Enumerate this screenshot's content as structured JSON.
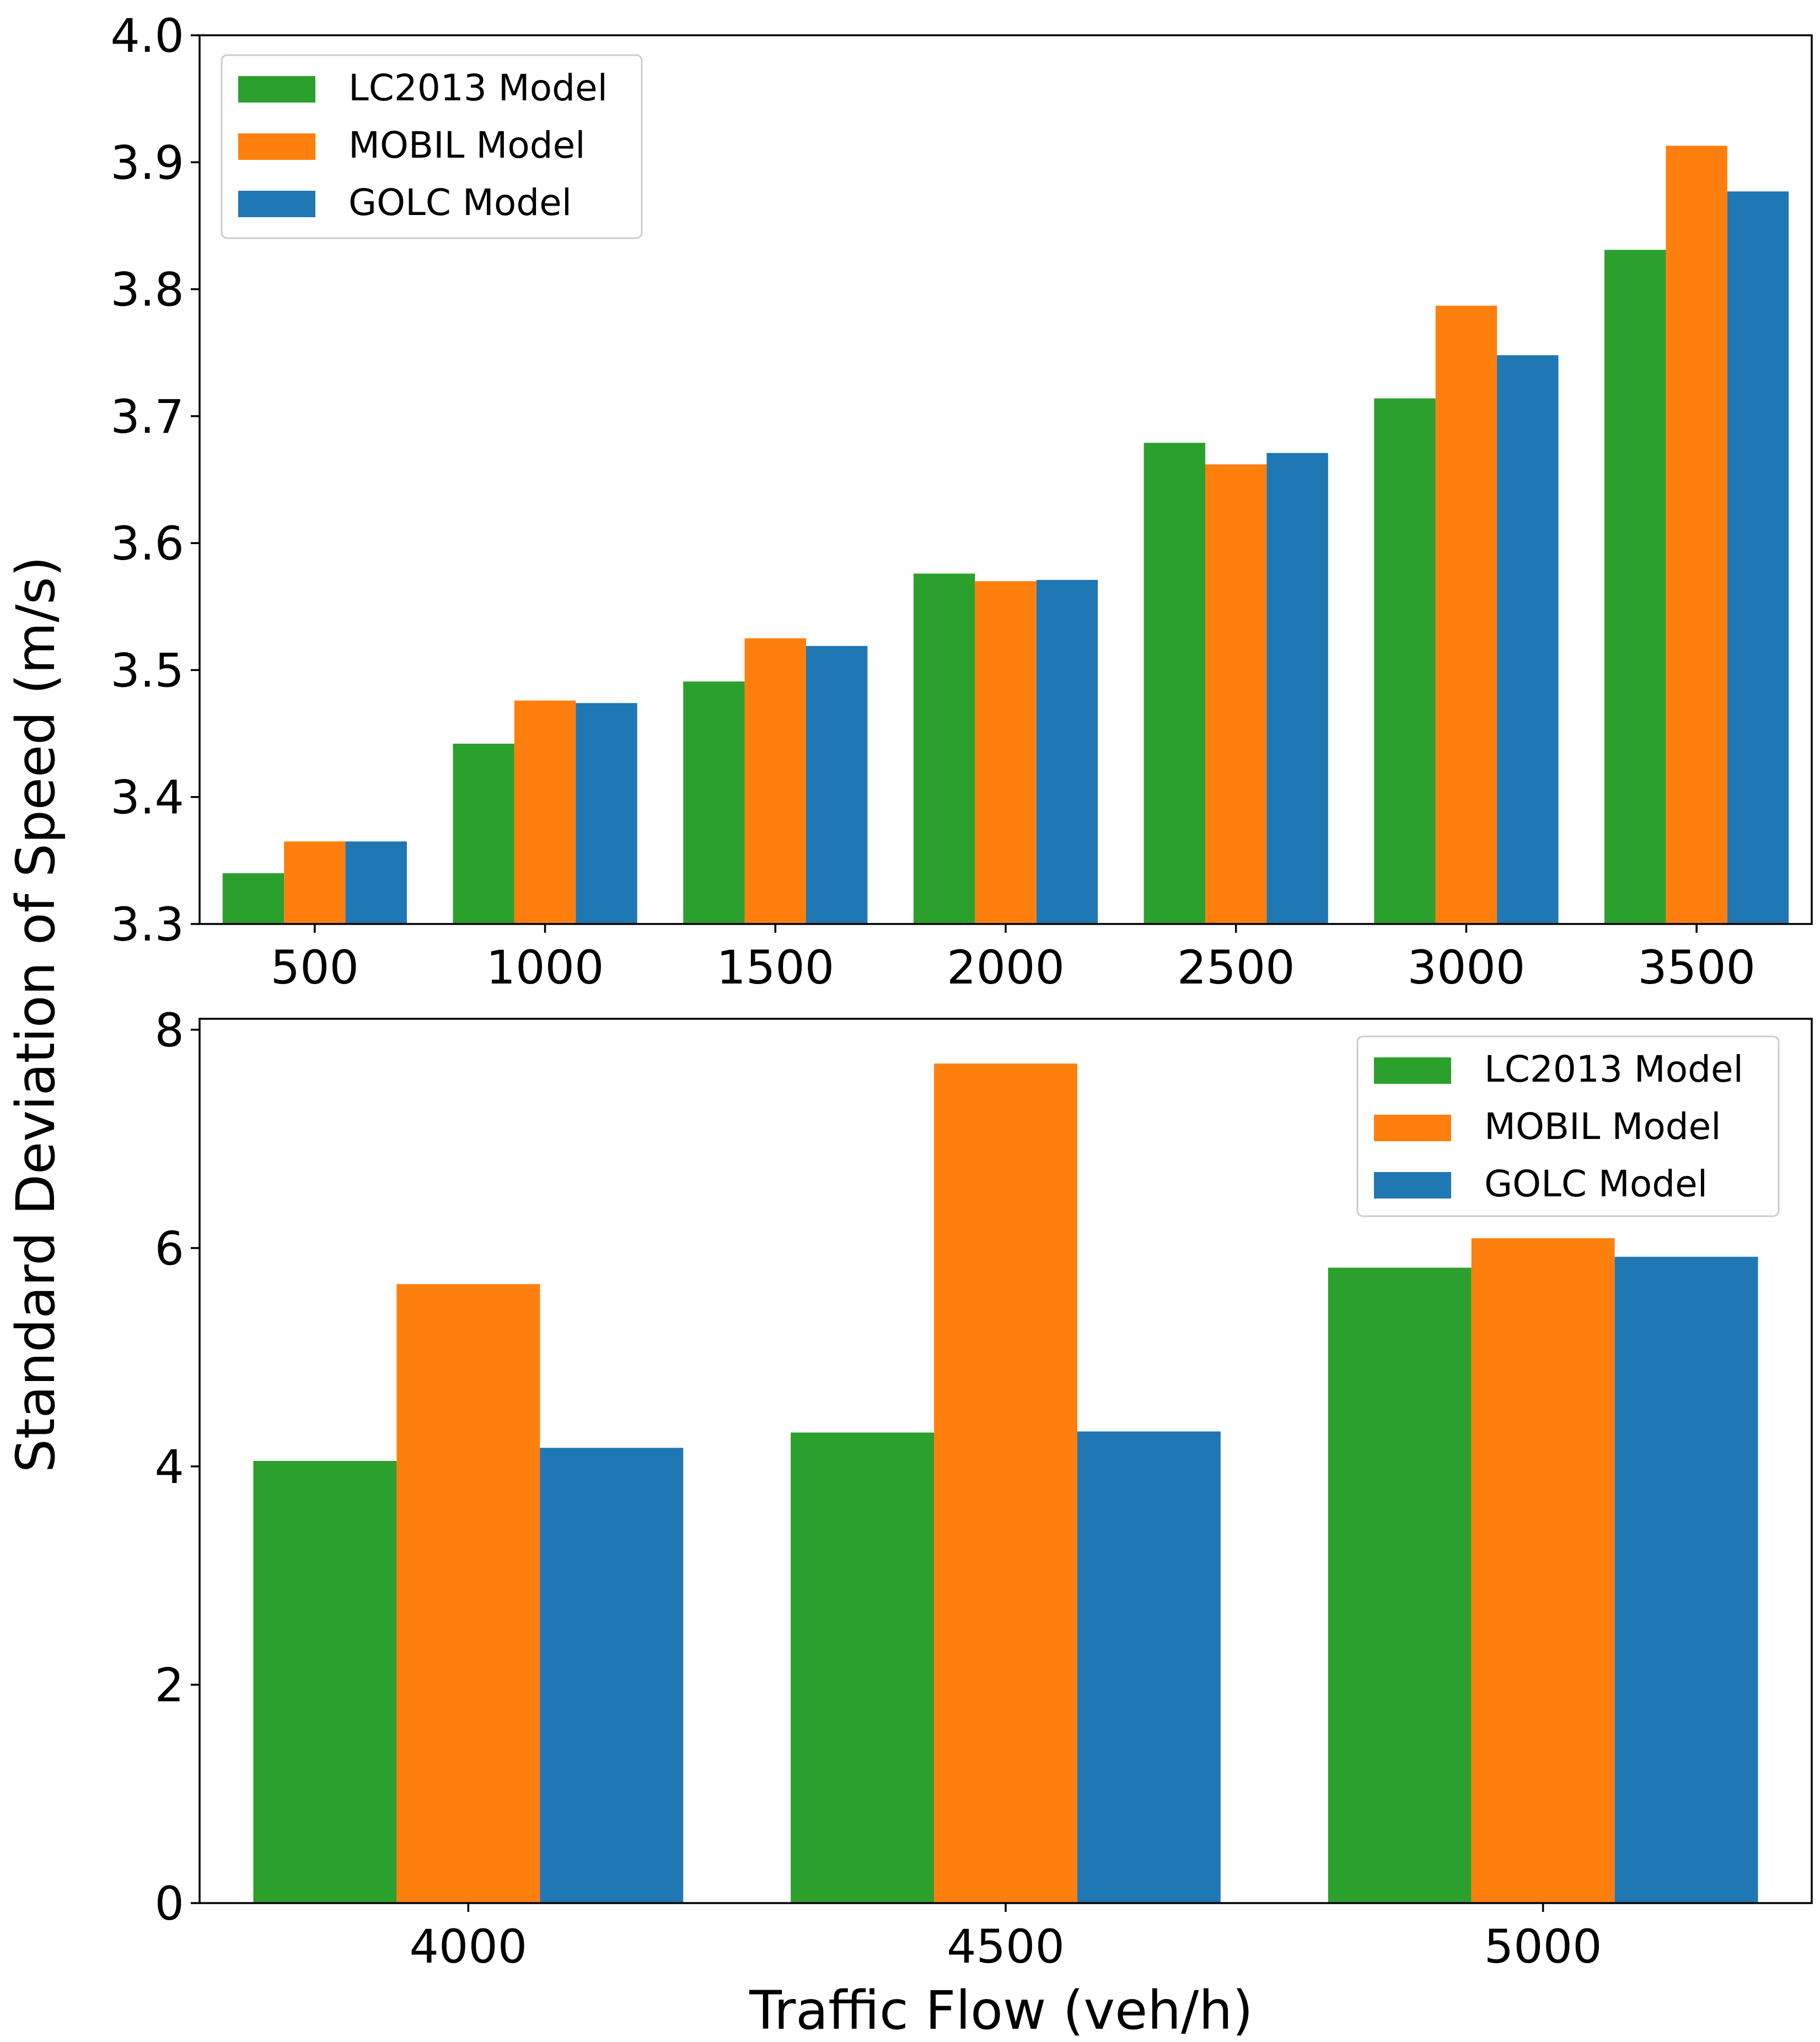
{
  "figure": {
    "shared_ylabel": "Standard Deviation of Speed (m/s)",
    "shared_xlabel": "Traffic Flow (veh/h)"
  },
  "colors": {
    "LC2013 Model": "#2ca02c",
    "MOBIL Model": "#ff7f0e",
    "GOLC Model": "#1f77b4"
  },
  "chart_data": [
    {
      "type": "bar",
      "title": "",
      "xlabel": "",
      "ylabel": "Standard Deviation of Speed (m/s)",
      "categories": [
        "500",
        "1000",
        "1500",
        "2000",
        "2500",
        "3000",
        "3500"
      ],
      "series": [
        {
          "name": "LC2013 Model",
          "values": [
            3.34,
            3.442,
            3.491,
            3.576,
            3.679,
            3.714,
            3.831
          ]
        },
        {
          "name": "MOBIL Model",
          "values": [
            3.365,
            3.476,
            3.525,
            3.57,
            3.662,
            3.787,
            3.913
          ]
        },
        {
          "name": "GOLC Model",
          "values": [
            3.365,
            3.474,
            3.519,
            3.571,
            3.671,
            3.748,
            3.877
          ]
        }
      ],
      "ylim": [
        3.3,
        4.0
      ],
      "yticks": [
        "3.3",
        "3.4",
        "3.5",
        "3.6",
        "3.7",
        "3.8",
        "3.9",
        "4.0"
      ],
      "legend": {
        "position": "top-left",
        "entries": [
          "LC2013 Model",
          "MOBIL Model",
          "GOLC Model"
        ]
      },
      "grid": false
    },
    {
      "type": "bar",
      "title": "",
      "xlabel": "Traffic Flow (veh/h)",
      "ylabel": "Standard Deviation of Speed (m/s)",
      "categories": [
        "4000",
        "4500",
        "5000"
      ],
      "series": [
        {
          "name": "LC2013 Model",
          "values": [
            4.05,
            4.31,
            5.82
          ]
        },
        {
          "name": "MOBIL Model",
          "values": [
            5.67,
            7.69,
            6.09
          ]
        },
        {
          "name": "GOLC Model",
          "values": [
            4.17,
            4.32,
            5.92
          ]
        }
      ],
      "ylim": [
        0,
        8.1
      ],
      "yticks": [
        "0",
        "2",
        "4",
        "6",
        "8"
      ],
      "legend": {
        "position": "top-right",
        "entries": [
          "LC2013 Model",
          "MOBIL Model",
          "GOLC Model"
        ]
      },
      "grid": false
    }
  ]
}
